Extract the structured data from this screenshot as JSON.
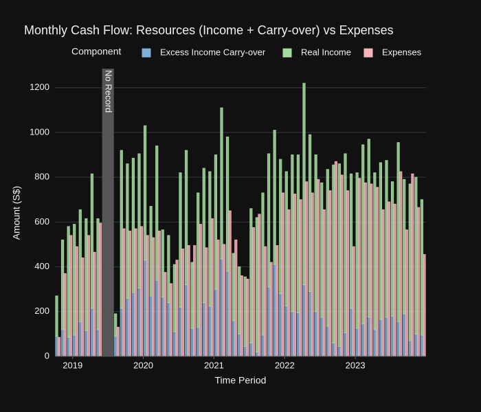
{
  "chart_data": {
    "type": "bar",
    "title": "Monthly Cash Flow: Resources (Income + Carry-over) vs Expenses",
    "x_label": "Time Period",
    "y_label": "Amount (S$)",
    "legend_title": "Component",
    "categories": [
      null,
      null,
      null,
      null,
      null,
      null,
      null,
      null,
      null,
      null,
      null,
      null,
      null,
      null,
      null,
      null,
      null,
      null,
      null,
      null,
      null,
      null,
      null,
      null,
      null,
      null,
      null,
      null,
      null,
      null,
      null,
      null,
      null,
      null,
      null,
      null,
      null,
      null,
      null,
      null,
      null,
      null,
      null,
      null,
      null,
      null,
      null,
      null,
      null,
      null,
      null,
      null,
      null,
      null,
      null,
      null,
      null,
      null,
      null,
      null,
      null,
      null,
      null
    ],
    "series": [
      {
        "name": "Excess Income Carry-over",
        "color": "#7fb0d8",
        "stack": "resources",
        "values": [
          90,
          120,
          85,
          95,
          155,
          115,
          215,
          120,
          null,
          null,
          90,
          215,
          260,
          285,
          305,
          430,
          270,
          340,
          265,
          240,
          110,
          220,
          320,
          125,
          130,
          240,
          225,
          300,
          435,
          380,
          160,
          100,
          45,
          60,
          20,
          95,
          310,
          410,
          280,
          225,
          200,
          195,
          320,
          290,
          200,
          175,
          135,
          60,
          45,
          105,
          215,
          125,
          145,
          175,
          120,
          165,
          175,
          180,
          155,
          190,
          70,
          100,
          95
        ]
      },
      {
        "name": "Real Income",
        "color": "#a6dca0",
        "stack": "resources",
        "values": [
          180,
          400,
          495,
          495,
          500,
          500,
          600,
          495,
          null,
          null,
          100,
          705,
          600,
          600,
          600,
          600,
          400,
          600,
          300,
          300,
          300,
          600,
          600,
          295,
          600,
          600,
          600,
          600,
          675,
          600,
          300,
          300,
          310,
          600,
          600,
          635,
          595,
          600,
          600,
          600,
          700,
          705,
          900,
          700,
          700,
          600,
          700,
          795,
          815,
          800,
          600,
          695,
          800,
          795,
          700,
          700,
          700,
          600,
          800,
          600,
          700,
          700,
          605
        ]
      },
      {
        "name": "Expenses",
        "color": "#f5b3ba",
        "stack": "expenses",
        "values": [
          85,
          370,
          540,
          490,
          440,
          540,
          465,
          595,
          null,
          null,
          130,
          570,
          560,
          570,
          580,
          540,
          530,
          560,
          375,
          325,
          430,
          480,
          495,
          495,
          590,
          485,
          615,
          520,
          500,
          650,
          520,
          360,
          345,
          575,
          635,
          490,
          420,
          495,
          730,
          655,
          725,
          700,
          780,
          730,
          790,
          655,
          740,
          870,
          810,
          740,
          490,
          795,
          775,
          770,
          755,
          655,
          690,
          680,
          825,
          565,
          815,
          665,
          455
        ]
      }
    ],
    "xlim": [
      -0.5,
      62.5
    ],
    "xticks": [
      {
        "value": 2.5,
        "label": "2019"
      },
      {
        "value": 14.5,
        "label": "2020"
      },
      {
        "value": 26.5,
        "label": "2021"
      },
      {
        "value": 38.5,
        "label": "2022"
      },
      {
        "value": 50.5,
        "label": "2023"
      }
    ],
    "ylim": [
      0,
      1285
    ],
    "yticks": [
      0,
      200,
      400,
      600,
      800,
      1000,
      1200
    ],
    "grid": true,
    "annotations": [
      {
        "text": "No Record",
        "x0": 7.5,
        "x1": 9.5
      }
    ]
  }
}
